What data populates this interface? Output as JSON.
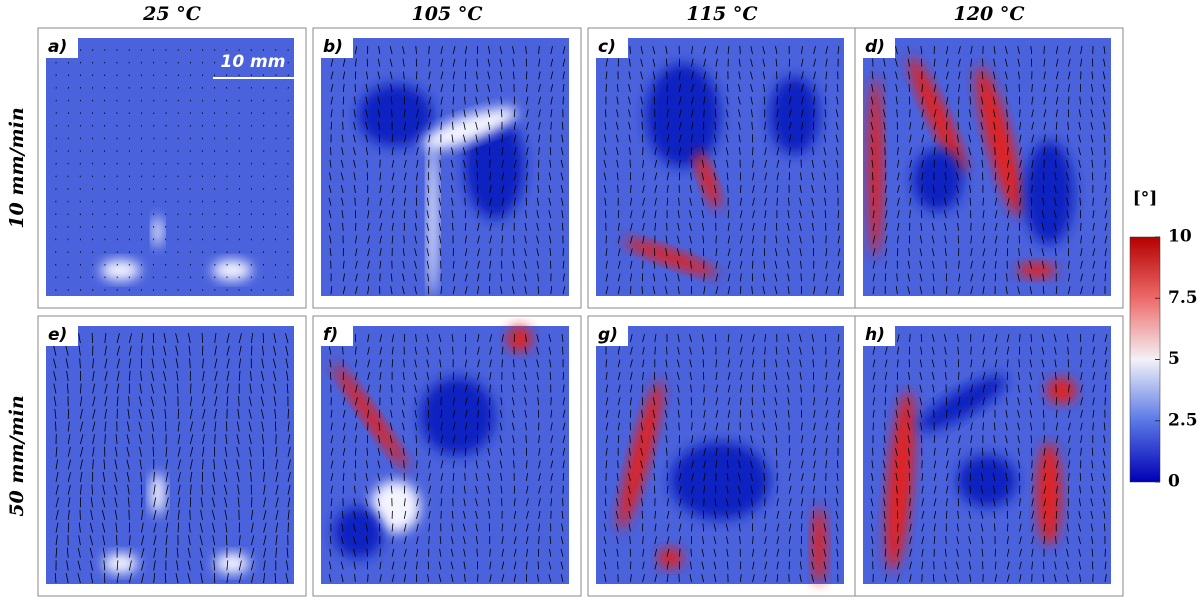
{
  "columns": [
    "25 °C",
    "105 °C",
    "115 °C",
    "120 °C"
  ],
  "rows": [
    "10 mm/min",
    "50 mm/min"
  ],
  "panels": [
    "a)",
    "b)",
    "c)",
    "d)",
    "e)",
    "f)",
    "g)",
    "h)"
  ],
  "scale_bar": "10 mm",
  "colorbar": {
    "label": "[°]",
    "range": [
      0,
      10
    ],
    "ticks": [
      0,
      2.5,
      5,
      7.5,
      10
    ]
  }
}
